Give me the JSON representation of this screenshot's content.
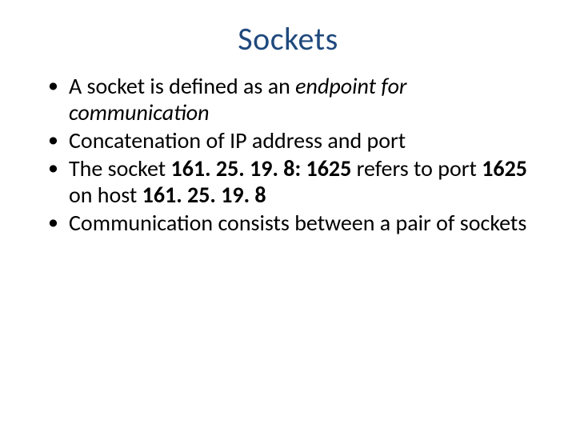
{
  "slide": {
    "title": "Sockets",
    "title_color": "#1f497d",
    "title_fontsize": 40,
    "body_fontsize": 28,
    "text_color": "#000000",
    "background_color": "#ffffff",
    "bullets": [
      {
        "runs": [
          {
            "text": "A socket is defined as an "
          },
          {
            "text": "endpoint for communication",
            "italic": true
          }
        ]
      },
      {
        "runs": [
          {
            "text": "Concatenation of IP address and port"
          }
        ]
      },
      {
        "runs": [
          {
            "text": "The socket "
          },
          {
            "text": "161. 25. 19. 8: 1625",
            "bold": true
          },
          {
            "text": " refers to port "
          },
          {
            "text": "1625",
            "bold": true
          },
          {
            "text": " on host "
          },
          {
            "text": "161. 25. 19. 8",
            "bold": true
          }
        ]
      },
      {
        "runs": [
          {
            "text": "Communication consists between a pair of sockets"
          }
        ]
      }
    ]
  }
}
